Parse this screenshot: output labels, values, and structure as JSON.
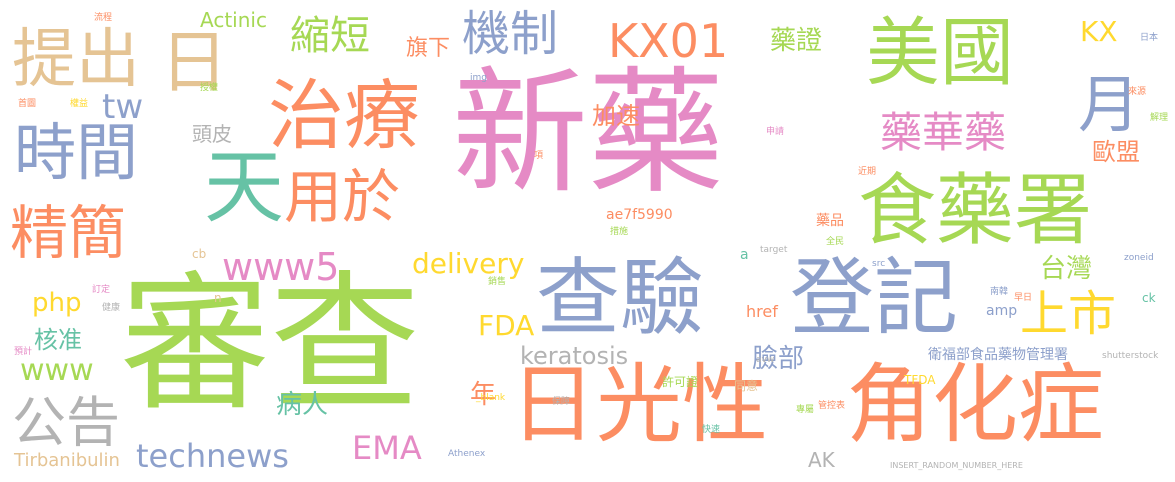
{
  "palette": {
    "pink": "#e58ac5",
    "green": "#a6d854",
    "orange": "#fc8d62",
    "blue": "#8da0cb",
    "teal": "#66c2a5",
    "yellow": "#ffd92f",
    "tan": "#e5c494",
    "gray": "#b3b3b3"
  },
  "words": {
    "w1": "新藥",
    "w2": "審查",
    "w3": "日光性",
    "w4": "角化症",
    "w5": "查驗",
    "w6": "登記",
    "w7": "美國",
    "w8": "食藥署",
    "w9": "治療",
    "w10": "提出",
    "w11": "日",
    "w12": "天",
    "w13": "用於",
    "w14": "時間",
    "w15": "精簡",
    "w16": "機制",
    "w17": "KX01",
    "w18": "縮短",
    "w19": "藥華藥",
    "w20": "月",
    "w21": "上市",
    "w22": "公告",
    "w23": "technews",
    "w24": "www5",
    "w25": "delivery",
    "w26": "www",
    "w27": "核准",
    "w28": "php",
    "w29": "FDA",
    "w30": "keratosis",
    "w31": "臉部",
    "w32": "病人",
    "w33": "年",
    "w34": "EMA",
    "w35": "Tirbanibulin",
    "w36": "AK",
    "w37": "衛福部食品藥物管理署",
    "w38": "台灣",
    "w39": "歐盟",
    "w40": "藥證",
    "w41": "KX",
    "w42": "tw",
    "w43": "頭皮",
    "w44": "加速",
    "w45": "旗下",
    "w46": "Actinic",
    "w47": "ae7f5990",
    "w48": "href",
    "w49": "許可證",
    "w50": "同意",
    "w51": "amp",
    "w52": "藥品",
    "w53": "ck",
    "w54": "cb",
    "w55": "a",
    "w56": "n",
    "w57": "img",
    "w58": "授權",
    "w59": "流程",
    "w60": "首圖",
    "w61": "權益",
    "w62": "日本",
    "w63": "來源",
    "w64": "解理",
    "w65": "申請",
    "w66": "項",
    "w67": "近期",
    "w68": "措施",
    "w69": "target",
    "w70": "全民",
    "w71": "src",
    "w72": "zoneid",
    "w73": "南韓",
    "w74": "早日",
    "w75": "avw",
    "w76": "_blank",
    "w77": "保障",
    "w78": "管控表",
    "w79": "專屬",
    "w80": "快速",
    "w81": "TFDA",
    "w82": "shutterstock",
    "w83": "Athenex",
    "w84": "INSERT_RANDOM_NUMBER_HERE",
    "w85": "訂定",
    "w86": "健康",
    "w87": "預計",
    "w88": "加速",
    "w89": "i",
    "w90": "銷售"
  }
}
